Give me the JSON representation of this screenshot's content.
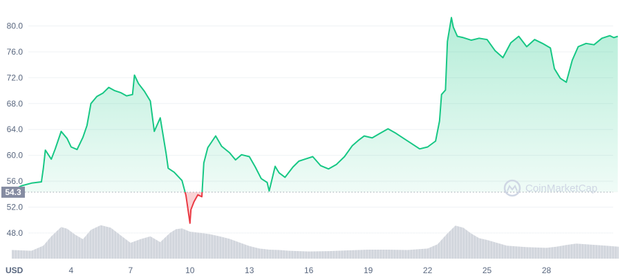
{
  "chart_data": {
    "type": "area",
    "currency": "USD",
    "watermark": "CoinMarketCap",
    "baseline": {
      "value": 54.3,
      "label": "54.3"
    },
    "y_ticks": [
      48.0,
      52.0,
      56.0,
      60.0,
      64.0,
      68.0,
      72.0,
      76.0,
      80.0
    ],
    "y_tick_labels": [
      "48.0",
      "52.0",
      "56.0",
      "60.0",
      "64.0",
      "68.0",
      "72.0",
      "76.0",
      "80.0"
    ],
    "ylim": [
      44.0,
      83.0
    ],
    "x_ticks": [
      4,
      7,
      10,
      13,
      16,
      19,
      22,
      25,
      28
    ],
    "x_tick_labels": [
      "4",
      "7",
      "10",
      "13",
      "16",
      "19",
      "22",
      "25",
      "28"
    ],
    "xlim": [
      1,
      31.65
    ],
    "grid": true,
    "colors": {
      "up": "#16c784",
      "down": "#ea3943",
      "volume": "#d1d5dc",
      "baseline": "#9aa2af",
      "grid": "#eff2f5",
      "label_bg": "#858ca2"
    },
    "price": {
      "x": [
        1.0,
        1.5,
        2.0,
        2.5,
        2.6,
        2.7,
        3.0,
        3.2,
        3.5,
        3.8,
        4.0,
        4.3,
        4.6,
        4.8,
        5.0,
        5.3,
        5.6,
        5.9,
        6.2,
        6.5,
        6.8,
        7.1,
        7.2,
        7.4,
        7.7,
        8.0,
        8.2,
        8.5,
        8.8,
        8.9,
        9.2,
        9.6,
        9.8,
        10.0,
        10.05,
        10.2,
        10.4,
        10.6,
        10.7,
        10.9,
        11.1,
        11.3,
        11.6,
        12.0,
        12.3,
        12.6,
        13.0,
        13.3,
        13.6,
        13.9,
        14.0,
        14.3,
        14.4,
        14.5,
        14.8,
        15.2,
        15.5,
        15.8,
        16.2,
        16.6,
        17.0,
        17.4,
        17.8,
        18.2,
        18.5,
        18.8,
        19.2,
        19.6,
        20.0,
        20.4,
        20.8,
        21.2,
        21.6,
        22.0,
        22.4,
        22.6,
        22.7,
        22.9,
        23.0,
        23.2,
        23.3,
        23.5,
        23.8,
        24.2,
        24.6,
        25.0,
        25.4,
        25.8,
        26.2,
        26.6,
        27.0,
        27.4,
        27.8,
        28.2,
        28.4,
        28.7,
        29.0,
        29.3,
        29.6,
        30.0,
        30.4,
        30.8,
        31.2,
        31.4,
        31.6
      ],
      "y": [
        54.5,
        55.3,
        55.7,
        55.9,
        58.0,
        60.8,
        59.4,
        61.0,
        63.7,
        62.6,
        61.3,
        60.9,
        62.8,
        64.6,
        68.0,
        69.1,
        69.6,
        70.5,
        70.0,
        69.7,
        69.2,
        69.4,
        72.4,
        71.1,
        69.9,
        68.4,
        63.7,
        65.8,
        60.2,
        58.0,
        57.4,
        56.1,
        53.8,
        49.5,
        51.6,
        52.8,
        53.9,
        53.6,
        58.8,
        61.2,
        62.1,
        63.0,
        61.4,
        60.4,
        59.3,
        60.1,
        59.8,
        58.2,
        56.4,
        55.8,
        54.5,
        58.3,
        57.8,
        57.3,
        56.6,
        58.2,
        59.1,
        59.4,
        59.8,
        58.4,
        57.9,
        58.6,
        59.8,
        61.5,
        62.3,
        63.0,
        62.7,
        63.4,
        64.1,
        63.4,
        62.6,
        61.8,
        61.0,
        61.3,
        62.2,
        65.3,
        69.4,
        70.1,
        77.6,
        81.3,
        79.8,
        78.4,
        78.2,
        77.8,
        78.1,
        77.9,
        76.2,
        75.1,
        77.4,
        78.4,
        76.8,
        77.9,
        77.3,
        76.6,
        73.4,
        71.9,
        71.3,
        74.7,
        76.8,
        77.3,
        77.1,
        78.1,
        78.5,
        78.2,
        78.4
      ]
    },
    "volume": {
      "x": [
        1.0,
        2.0,
        2.6,
        3.0,
        3.5,
        3.8,
        4.2,
        4.6,
        5.0,
        5.5,
        6.0,
        6.5,
        7.0,
        7.5,
        8.0,
        8.5,
        9.0,
        9.3,
        9.6,
        10.0,
        10.5,
        11.0,
        11.5,
        12.0,
        12.5,
        13.0,
        13.5,
        14.0,
        14.5,
        15.0,
        16.0,
        17.0,
        18.0,
        19.0,
        20.0,
        21.0,
        22.0,
        22.5,
        23.0,
        23.4,
        23.8,
        24.2,
        24.6,
        25.0,
        25.5,
        26.0,
        27.0,
        28.0,
        28.5,
        29.0,
        29.5,
        30.0,
        31.0,
        31.65
      ],
      "share": [
        0.24,
        0.22,
        0.36,
        0.62,
        0.88,
        0.83,
        0.67,
        0.54,
        0.8,
        0.93,
        0.86,
        0.65,
        0.44,
        0.54,
        0.62,
        0.46,
        0.72,
        0.82,
        0.84,
        0.75,
        0.72,
        0.68,
        0.62,
        0.55,
        0.45,
        0.35,
        0.28,
        0.25,
        0.24,
        0.22,
        0.2,
        0.21,
        0.23,
        0.25,
        0.25,
        0.24,
        0.28,
        0.4,
        0.7,
        0.92,
        0.86,
        0.7,
        0.57,
        0.52,
        0.44,
        0.36,
        0.32,
        0.3,
        0.33,
        0.38,
        0.42,
        0.4,
        0.36,
        0.33
      ]
    }
  }
}
